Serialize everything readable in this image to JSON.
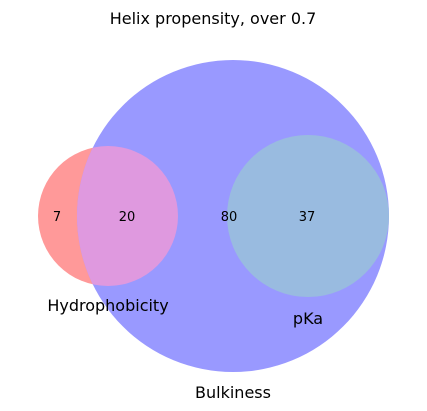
{
  "title": "Helix propensity, over 0.7",
  "sets": [
    {
      "key": "hydrophobicity",
      "label": "Hydrophobicity",
      "color": "#ff9999"
    },
    {
      "key": "bulkiness",
      "label": "Bulkiness",
      "color": "#9999ff"
    },
    {
      "key": "pka",
      "label": "pKa",
      "color": "#99bbe0"
    }
  ],
  "regions": {
    "hydrophobicity_only": "7",
    "hydrophobicity_bulkiness": "20",
    "bulkiness_only": "80",
    "bulkiness_pka": "37"
  },
  "overlap_colors": {
    "hydrophobicity_bulkiness": "#df99df",
    "bulkiness_pka": "#99bbe0"
  }
}
